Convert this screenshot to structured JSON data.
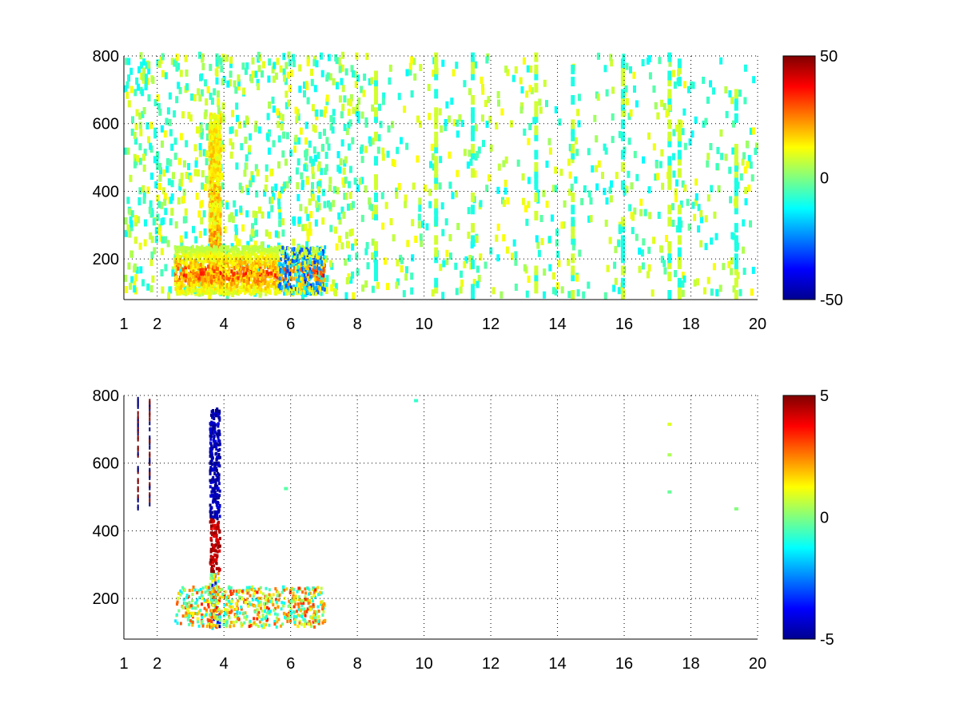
{
  "chart_data": [
    {
      "type": "heatmap",
      "title": "",
      "xlabel": "",
      "ylabel": "",
      "xlim": [
        1,
        20
      ],
      "ylim": [
        80,
        800
      ],
      "xticks": [
        1,
        2,
        4,
        6,
        8,
        10,
        12,
        14,
        16,
        18,
        20
      ],
      "yticks": [
        200,
        400,
        600,
        800
      ],
      "grid": true,
      "colormap": "jet",
      "clim": [
        -50,
        50
      ],
      "colorbar_ticks": [
        50,
        0,
        -50
      ],
      "features": {
        "vertical_ridge": {
          "x": 3.7,
          "y_range": [
            120,
            620
          ],
          "value": 30
        },
        "horizontal_band": {
          "y": 150,
          "x_range": [
            2.5,
            7.0
          ],
          "value": 40
        },
        "sparse_columns_x": [
          8.5,
          10.3,
          11.4,
          13.3,
          14.4,
          15.9,
          17.3,
          17.6,
          19.3
        ]
      }
    },
    {
      "type": "heatmap",
      "title": "",
      "xlabel": "",
      "ylabel": "",
      "xlim": [
        1,
        20
      ],
      "ylim": [
        80,
        800
      ],
      "xticks": [
        1,
        2,
        4,
        6,
        8,
        10,
        12,
        14,
        16,
        18,
        20
      ],
      "yticks": [
        200,
        400,
        600,
        800
      ],
      "grid": true,
      "colormap": "jet",
      "clim": [
        -5,
        5
      ],
      "colorbar_ticks": [
        5,
        0,
        -5
      ],
      "features": {
        "vertical_ridge": {
          "x": 3.7,
          "y_range": [
            100,
            760
          ],
          "value": 5
        },
        "horizontal_band": {
          "y": 160,
          "x_range": [
            2.5,
            7.0
          ],
          "value": -3
        },
        "isolated_points": [
          [
            17.3,
            710
          ],
          [
            17.3,
            620
          ],
          [
            17.3,
            510
          ],
          [
            19.3,
            460
          ],
          [
            9.7,
            780
          ],
          [
            5.8,
            520
          ]
        ]
      }
    }
  ]
}
